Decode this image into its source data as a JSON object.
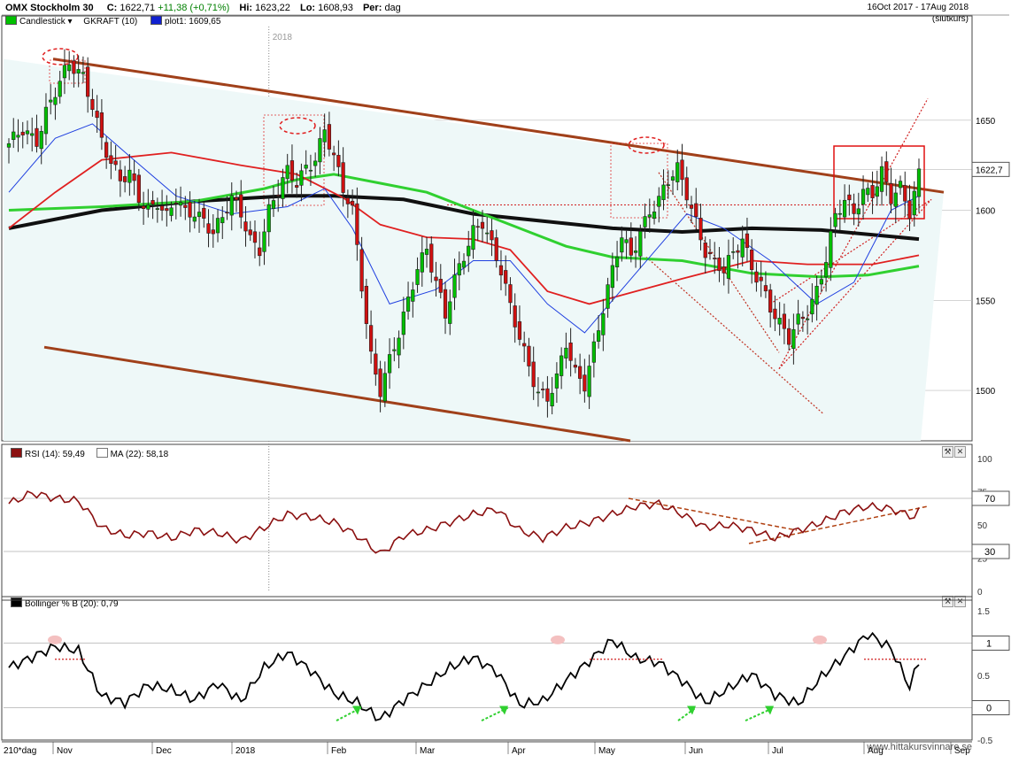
{
  "header": {
    "instrument": "OMX Stockholm 30",
    "close_label": "C:",
    "close": "1622,71",
    "change": "+11,38 (+0,71%)",
    "hi_label": "Hi:",
    "hi": "1623,22",
    "lo_label": "Lo:",
    "lo": "1608,93",
    "per_label": "Per:",
    "per": "dag",
    "date_range": "16Oct 2017 - 17Aug 2018",
    "price_type": "(slutkurs)"
  },
  "legend": {
    "candles": "Candlestick",
    "gkraft": "GKRAFT (10)",
    "plot1": "plot1: 1609,65"
  },
  "panels": {
    "rsi_title": "RSI (14): 59,49",
    "rsi_ma": "MA (22): 58,18",
    "boll_title": "Bollinger % B (20): 0,79"
  },
  "footer": {
    "bars": "210*dag",
    "watermark": "www.hittakursvinnare.se"
  },
  "colors": {
    "up": "#00c000",
    "down": "#d01010",
    "channel": "#a0401a",
    "ma_black": "#101010",
    "ma_green": "#30d030",
    "ma_red": "#e02020",
    "ma_blue": "#2040e0",
    "rsi": "#8b1010",
    "boll": "#000000"
  },
  "chart_data": {
    "type": "candlestick",
    "title": "OMX Stockholm 30",
    "price_axis": {
      "range": [
        1472,
        1702
      ],
      "ticks": [
        1500,
        1550,
        1600,
        1650
      ],
      "last_price": "1622,7"
    },
    "time_axis": {
      "labels": [
        "Nov",
        "Dec",
        "2018",
        "Feb",
        "Mar",
        "Apr",
        "May",
        "Jun",
        "Jul",
        "Aug",
        "Sep"
      ],
      "year_marker": "2018"
    },
    "close_series": [
      [
        0,
        1635
      ],
      [
        3,
        1645
      ],
      [
        6,
        1640
      ],
      [
        8,
        1655
      ],
      [
        10,
        1665
      ],
      [
        13,
        1680
      ],
      [
        16,
        1675
      ],
      [
        18,
        1660
      ],
      [
        20,
        1640
      ],
      [
        22,
        1625
      ],
      [
        24,
        1615
      ],
      [
        26,
        1620
      ],
      [
        28,
        1608
      ],
      [
        30,
        1602
      ],
      [
        32,
        1605
      ],
      [
        34,
        1595
      ],
      [
        36,
        1605
      ],
      [
        38,
        1598
      ],
      [
        40,
        1600
      ],
      [
        42,
        1596
      ],
      [
        44,
        1588
      ],
      [
        46,
        1595
      ],
      [
        48,
        1605
      ],
      [
        50,
        1598
      ],
      [
        52,
        1585
      ],
      [
        54,
        1580
      ],
      [
        56,
        1600
      ],
      [
        58,
        1610
      ],
      [
        60,
        1620
      ],
      [
        62,
        1615
      ],
      [
        64,
        1625
      ],
      [
        66,
        1630
      ],
      [
        68,
        1645
      ],
      [
        70,
        1628
      ],
      [
        72,
        1610
      ],
      [
        74,
        1600
      ],
      [
        76,
        1560
      ],
      [
        78,
        1520
      ],
      [
        80,
        1500
      ],
      [
        82,
        1515
      ],
      [
        84,
        1530
      ],
      [
        86,
        1550
      ],
      [
        88,
        1570
      ],
      [
        90,
        1580
      ],
      [
        92,
        1560
      ],
      [
        94,
        1540
      ],
      [
        96,
        1560
      ],
      [
        98,
        1575
      ],
      [
        100,
        1590
      ],
      [
        102,
        1595
      ],
      [
        104,
        1580
      ],
      [
        106,
        1565
      ],
      [
        108,
        1545
      ],
      [
        110,
        1530
      ],
      [
        112,
        1515
      ],
      [
        114,
        1500
      ],
      [
        116,
        1495
      ],
      [
        118,
        1505
      ],
      [
        120,
        1525
      ],
      [
        122,
        1510
      ],
      [
        124,
        1505
      ],
      [
        126,
        1525
      ],
      [
        128,
        1545
      ],
      [
        130,
        1565
      ],
      [
        132,
        1585
      ],
      [
        134,
        1575
      ],
      [
        136,
        1590
      ],
      [
        138,
        1600
      ],
      [
        140,
        1605
      ],
      [
        142,
        1615
      ],
      [
        144,
        1622
      ],
      [
        146,
        1610
      ],
      [
        148,
        1595
      ],
      [
        150,
        1578
      ],
      [
        152,
        1570
      ],
      [
        154,
        1565
      ],
      [
        156,
        1575
      ],
      [
        158,
        1585
      ],
      [
        160,
        1570
      ],
      [
        162,
        1560
      ],
      [
        164,
        1545
      ],
      [
        166,
        1535
      ],
      [
        168,
        1528
      ],
      [
        170,
        1540
      ],
      [
        172,
        1545
      ],
      [
        174,
        1556
      ],
      [
        176,
        1572
      ],
      [
        178,
        1595
      ],
      [
        180,
        1605
      ],
      [
        182,
        1600
      ],
      [
        184,
        1612
      ],
      [
        186,
        1610
      ],
      [
        188,
        1620
      ],
      [
        190,
        1605
      ],
      [
        192,
        1612
      ],
      [
        194,
        1600
      ],
      [
        196,
        1622
      ]
    ],
    "moving_averages": [
      {
        "color": "black",
        "values": [
          [
            0,
            1590
          ],
          [
            20,
            1600
          ],
          [
            40,
            1605
          ],
          [
            60,
            1608
          ],
          [
            70,
            1608
          ],
          [
            85,
            1606
          ],
          [
            100,
            1598
          ],
          [
            115,
            1594
          ],
          [
            130,
            1590
          ],
          [
            145,
            1588
          ],
          [
            160,
            1590
          ],
          [
            175,
            1589
          ],
          [
            196,
            1584
          ]
        ]
      },
      {
        "color": "green",
        "values": [
          [
            0,
            1600
          ],
          [
            20,
            1602
          ],
          [
            40,
            1605
          ],
          [
            55,
            1612
          ],
          [
            62,
            1617
          ],
          [
            70,
            1620
          ],
          [
            80,
            1615
          ],
          [
            90,
            1610
          ],
          [
            100,
            1600
          ],
          [
            110,
            1590
          ],
          [
            120,
            1580
          ],
          [
            130,
            1574
          ],
          [
            145,
            1572
          ],
          [
            160,
            1565
          ],
          [
            175,
            1563
          ],
          [
            185,
            1564
          ],
          [
            196,
            1569
          ]
        ]
      },
      {
        "color": "red",
        "values": [
          [
            0,
            1590
          ],
          [
            10,
            1610
          ],
          [
            20,
            1628
          ],
          [
            35,
            1632
          ],
          [
            50,
            1625
          ],
          [
            62,
            1620
          ],
          [
            72,
            1607
          ],
          [
            80,
            1592
          ],
          [
            90,
            1585
          ],
          [
            100,
            1584
          ],
          [
            108,
            1578
          ],
          [
            116,
            1555
          ],
          [
            125,
            1548
          ],
          [
            135,
            1555
          ],
          [
            145,
            1562
          ],
          [
            160,
            1572
          ],
          [
            172,
            1570
          ],
          [
            186,
            1570
          ],
          [
            196,
            1575
          ]
        ]
      },
      {
        "color": "blue",
        "values": [
          [
            0,
            1610
          ],
          [
            10,
            1640
          ],
          [
            18,
            1648
          ],
          [
            26,
            1630
          ],
          [
            36,
            1608
          ],
          [
            48,
            1598
          ],
          [
            60,
            1602
          ],
          [
            68,
            1612
          ],
          [
            74,
            1590
          ],
          [
            82,
            1548
          ],
          [
            92,
            1556
          ],
          [
            100,
            1572
          ],
          [
            108,
            1572
          ],
          [
            116,
            1548
          ],
          [
            124,
            1532
          ],
          [
            134,
            1562
          ],
          [
            146,
            1598
          ],
          [
            154,
            1590
          ],
          [
            164,
            1572
          ],
          [
            174,
            1548
          ],
          [
            182,
            1560
          ],
          [
            190,
            1600
          ],
          [
            196,
            1608
          ]
        ]
      }
    ],
    "rsi": {
      "range": [
        0,
        100
      ],
      "ticks": [
        0,
        25,
        50,
        75,
        100
      ],
      "levels": [
        "70",
        "30"
      ],
      "values": [
        [
          0,
          66
        ],
        [
          5,
          74
        ],
        [
          10,
          70
        ],
        [
          15,
          68
        ],
        [
          20,
          48
        ],
        [
          25,
          42
        ],
        [
          30,
          44
        ],
        [
          35,
          40
        ],
        [
          40,
          46
        ],
        [
          45,
          44
        ],
        [
          50,
          38
        ],
        [
          55,
          48
        ],
        [
          60,
          58
        ],
        [
          65,
          56
        ],
        [
          70,
          52
        ],
        [
          75,
          42
        ],
        [
          80,
          28
        ],
        [
          85,
          42
        ],
        [
          90,
          46
        ],
        [
          95,
          52
        ],
        [
          100,
          58
        ],
        [
          105,
          62
        ],
        [
          110,
          46
        ],
        [
          115,
          40
        ],
        [
          120,
          48
        ],
        [
          125,
          52
        ],
        [
          130,
          58
        ],
        [
          135,
          64
        ],
        [
          140,
          66
        ],
        [
          145,
          58
        ],
        [
          150,
          48
        ],
        [
          155,
          50
        ],
        [
          160,
          46
        ],
        [
          165,
          40
        ],
        [
          170,
          46
        ],
        [
          175,
          52
        ],
        [
          180,
          60
        ],
        [
          185,
          64
        ],
        [
          190,
          62
        ],
        [
          195,
          56
        ],
        [
          196,
          60
        ]
      ]
    },
    "bollinger_pctb": {
      "range": [
        -0.5,
        1.5
      ],
      "ticks": [
        -0.5,
        0,
        0.5,
        1,
        1.5
      ],
      "levels": [
        "1",
        "0"
      ],
      "values": [
        [
          0,
          0.62
        ],
        [
          5,
          0.78
        ],
        [
          10,
          0.95
        ],
        [
          15,
          0.88
        ],
        [
          20,
          0.18
        ],
        [
          25,
          0.08
        ],
        [
          30,
          0.35
        ],
        [
          35,
          0.28
        ],
        [
          40,
          0.12
        ],
        [
          45,
          0.38
        ],
        [
          50,
          0.1
        ],
        [
          55,
          0.62
        ],
        [
          60,
          0.85
        ],
        [
          65,
          0.58
        ],
        [
          70,
          0.22
        ],
        [
          75,
          0.08
        ],
        [
          80,
          -0.18
        ],
        [
          85,
          0.12
        ],
        [
          90,
          0.36
        ],
        [
          95,
          0.62
        ],
        [
          100,
          0.78
        ],
        [
          105,
          0.56
        ],
        [
          110,
          0.05
        ],
        [
          115,
          0.1
        ],
        [
          120,
          0.42
        ],
        [
          125,
          0.72
        ],
        [
          130,
          1.05
        ],
        [
          135,
          0.76
        ],
        [
          140,
          0.7
        ],
        [
          145,
          0.42
        ],
        [
          150,
          0.08
        ],
        [
          155,
          0.3
        ],
        [
          160,
          0.52
        ],
        [
          165,
          0.2
        ],
        [
          170,
          0.06
        ],
        [
          175,
          0.48
        ],
        [
          180,
          0.8
        ],
        [
          185,
          1.14
        ],
        [
          190,
          0.92
        ],
        [
          194,
          0.32
        ],
        [
          196,
          0.72
        ]
      ]
    }
  }
}
